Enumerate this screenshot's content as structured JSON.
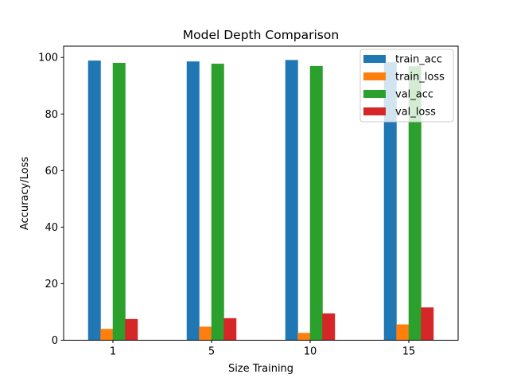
{
  "chart_data": {
    "type": "bar",
    "title": "Model Depth Comparison",
    "xlabel": "Size Training",
    "ylabel": "Accuracy/Loss",
    "categories": [
      "1",
      "5",
      "10",
      "15"
    ],
    "ylim": [
      0,
      104
    ],
    "yticks": [
      0,
      20,
      40,
      60,
      80,
      100
    ],
    "grid": false,
    "legend_position": "top-right",
    "series": [
      {
        "name": "train_acc",
        "color": "#1f77b4",
        "values": [
          98.9,
          98.6,
          99.1,
          98.3
        ]
      },
      {
        "name": "train_loss",
        "color": "#ff7f0e",
        "values": [
          4.0,
          4.8,
          2.6,
          5.6
        ]
      },
      {
        "name": "val_acc",
        "color": "#2ca02c",
        "values": [
          98.1,
          97.8,
          97.0,
          96.9
        ]
      },
      {
        "name": "val_loss",
        "color": "#d62728",
        "values": [
          7.5,
          7.8,
          9.5,
          11.6
        ]
      }
    ]
  }
}
